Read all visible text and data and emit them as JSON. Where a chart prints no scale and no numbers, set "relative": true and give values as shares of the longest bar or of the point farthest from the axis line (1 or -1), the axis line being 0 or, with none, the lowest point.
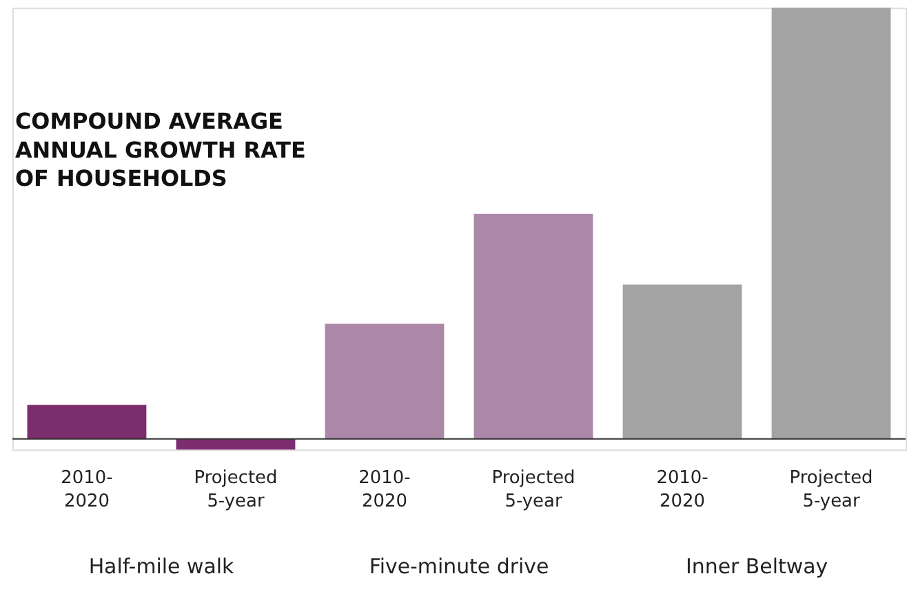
{
  "chart_data": {
    "type": "bar",
    "relative": true,
    "title": "COMPOUND AVERAGE\nANNUAL GROWTH RATE\nOF HOUSEHOLDS",
    "categories": [
      "2010-\n2020",
      "Projected\n5-year",
      "2010-\n2020",
      "Projected\n5-year",
      "2010-\n2020",
      "Projected\n5-year"
    ],
    "values": [
      0.079,
      -0.025,
      0.267,
      0.522,
      0.358,
      1
    ],
    "colors": [
      "#7b2d6e",
      "#7b2d6e",
      "#ab88a8",
      "#ab88a8",
      "#a3a3a3",
      "#a3a3a3"
    ],
    "annotations": [
      "Half-mile walk",
      "Five-minute drive",
      "Inner Beltway"
    ],
    "grid": false
  }
}
